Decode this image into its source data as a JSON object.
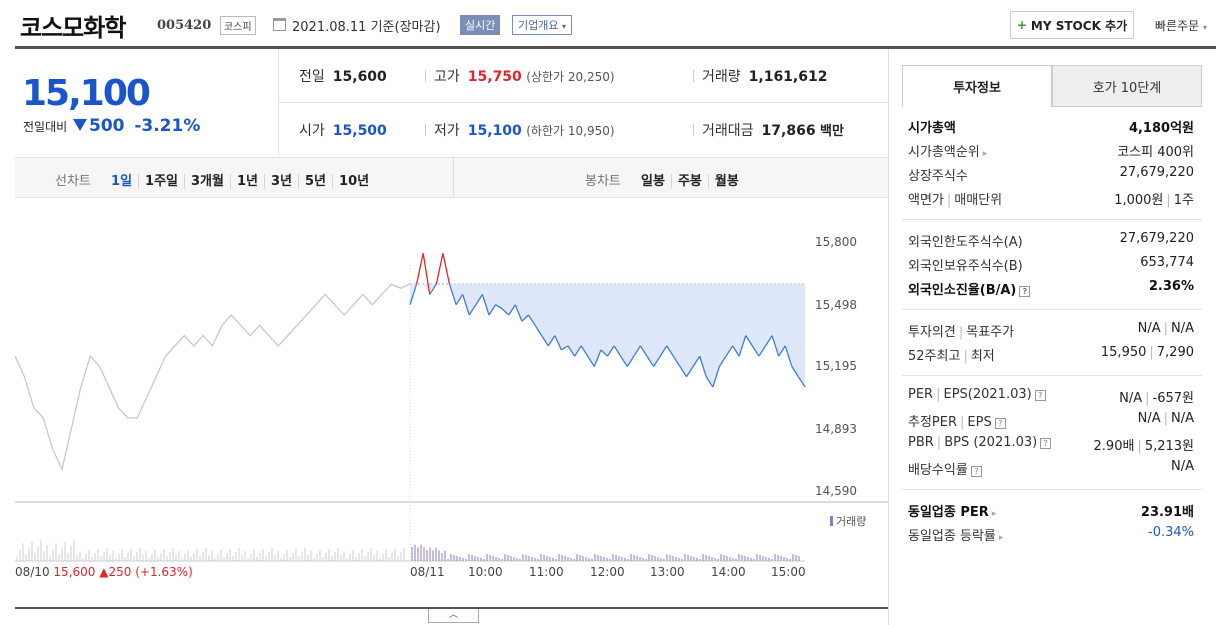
{
  "header": {
    "name": "코스모화학",
    "code": "005420",
    "market": "코스피",
    "date": "2021.08.11",
    "date_suffix": "기준(장마감)",
    "realtime": "실시간",
    "overview": "기업개요",
    "mystock": "MY STOCK 추가",
    "quick_order": "빠른주문"
  },
  "price": {
    "current": "15,100",
    "change_label": "전일대비",
    "change": "500",
    "change_pct": "-3.21%"
  },
  "stats": {
    "prev_close_k": "전일",
    "prev_close_v": "15,600",
    "high_k": "고가",
    "high_v": "15,750",
    "upper_limit": "(상한가 20,250)",
    "volume_k": "거래량",
    "volume_v": "1,161,612",
    "open_k": "시가",
    "open_v": "15,500",
    "low_k": "저가",
    "low_v": "15,100",
    "lower_limit": "(하한가 10,950)",
    "amount_k": "거래대금",
    "amount_v": "17,866",
    "amount_unit": "백만"
  },
  "toolbar": {
    "line_label": "선차트",
    "line_items": [
      "1일",
      "1주일",
      "3개월",
      "1년",
      "3년",
      "5년",
      "10년"
    ],
    "candle_label": "봉차트",
    "candle_items": [
      "일봉",
      "주봉",
      "월봉"
    ]
  },
  "chart_data": {
    "type": "line",
    "y_ticks": [
      "15,800",
      "15,498",
      "15,195",
      "14,893",
      "14,590"
    ],
    "ylim": [
      14590,
      15800
    ],
    "x_ticks": [
      "08/10",
      "08/11",
      "10:00",
      "11:00",
      "12:00",
      "13:00",
      "14:00",
      "15:00"
    ],
    "prev_day_summary": {
      "close": "15,600",
      "change": "250",
      "pct": "(+1.63%)"
    },
    "volume_legend": "거래량",
    "series": [
      {
        "name": "08/10",
        "values": [
          15250,
          15150,
          15000,
          14950,
          14800,
          14700,
          14900,
          15100,
          15250,
          15200,
          15100,
          15000,
          14950,
          14950,
          15050,
          15150,
          15250,
          15300,
          15350,
          15300,
          15350,
          15300,
          15400,
          15450,
          15400,
          15350,
          15400,
          15350,
          15300,
          15350,
          15400,
          15450,
          15500,
          15550,
          15500,
          15450,
          15500,
          15550,
          15500,
          15550,
          15600,
          15580,
          15600
        ]
      },
      {
        "name": "08/11",
        "values": [
          15500,
          15600,
          15750,
          15550,
          15600,
          15750,
          15600,
          15500,
          15550,
          15450,
          15500,
          15550,
          15450,
          15500,
          15480,
          15450,
          15500,
          15420,
          15450,
          15400,
          15350,
          15300,
          15350,
          15280,
          15300,
          15250,
          15300,
          15250,
          15200,
          15280,
          15250,
          15300,
          15250,
          15200,
          15250,
          15300,
          15250,
          15200,
          15250,
          15300,
          15250,
          15200,
          15150,
          15200,
          15250,
          15150,
          15100,
          15200,
          15250,
          15300,
          15250,
          15350,
          15300,
          15250,
          15300,
          15350,
          15250,
          15300,
          15200,
          15150,
          15100
        ]
      }
    ]
  },
  "right_panel": {
    "tab_active": "투자정보",
    "tab_other": "호가 10단계",
    "market_cap_k": "시가총액",
    "market_cap_v": "4,180억원",
    "rank_k": "시가총액순위",
    "rank_v": "코스피 400위",
    "shares_k": "상장주식수",
    "shares_v": "27,679,220",
    "face_k": "액면가",
    "face_k2": "매매단위",
    "face_v": "1,000원",
    "face_v2": "1주",
    "foreign_limit_k": "외국인한도주식수(A)",
    "foreign_limit_v": "27,679,220",
    "foreign_hold_k": "외국인보유주식수(B)",
    "foreign_hold_v": "653,774",
    "foreign_ratio_k": "외국인소진율(B/A)",
    "foreign_ratio_v": "2.36%",
    "opinion_k": "투자의견",
    "opinion_k2": "목표주가",
    "opinion_v": "N/A",
    "opinion_v2": "N/A",
    "w52_k": "52주최고",
    "w52_k2": "최저",
    "w52_v": "15,950",
    "w52_v2": "7,290",
    "per_k": "PER",
    "eps_k": "EPS(2021.03)",
    "per_v": "N/A",
    "eps_v": "-657원",
    "eper_k": "추정PER",
    "eeps_k": "EPS",
    "eper_v": "N/A",
    "eeps_v": "N/A",
    "pbr_k": "PBR",
    "bps_k": "BPS (2021.03)",
    "pbr_v": "2.90배",
    "bps_v": "5,213원",
    "div_k": "배당수익률",
    "div_v": "N/A",
    "ind_per_k": "동일업종 PER",
    "ind_per_v": "23.91배",
    "ind_rate_k": "동일업종 등락률",
    "ind_rate_v": "-0.34%"
  }
}
